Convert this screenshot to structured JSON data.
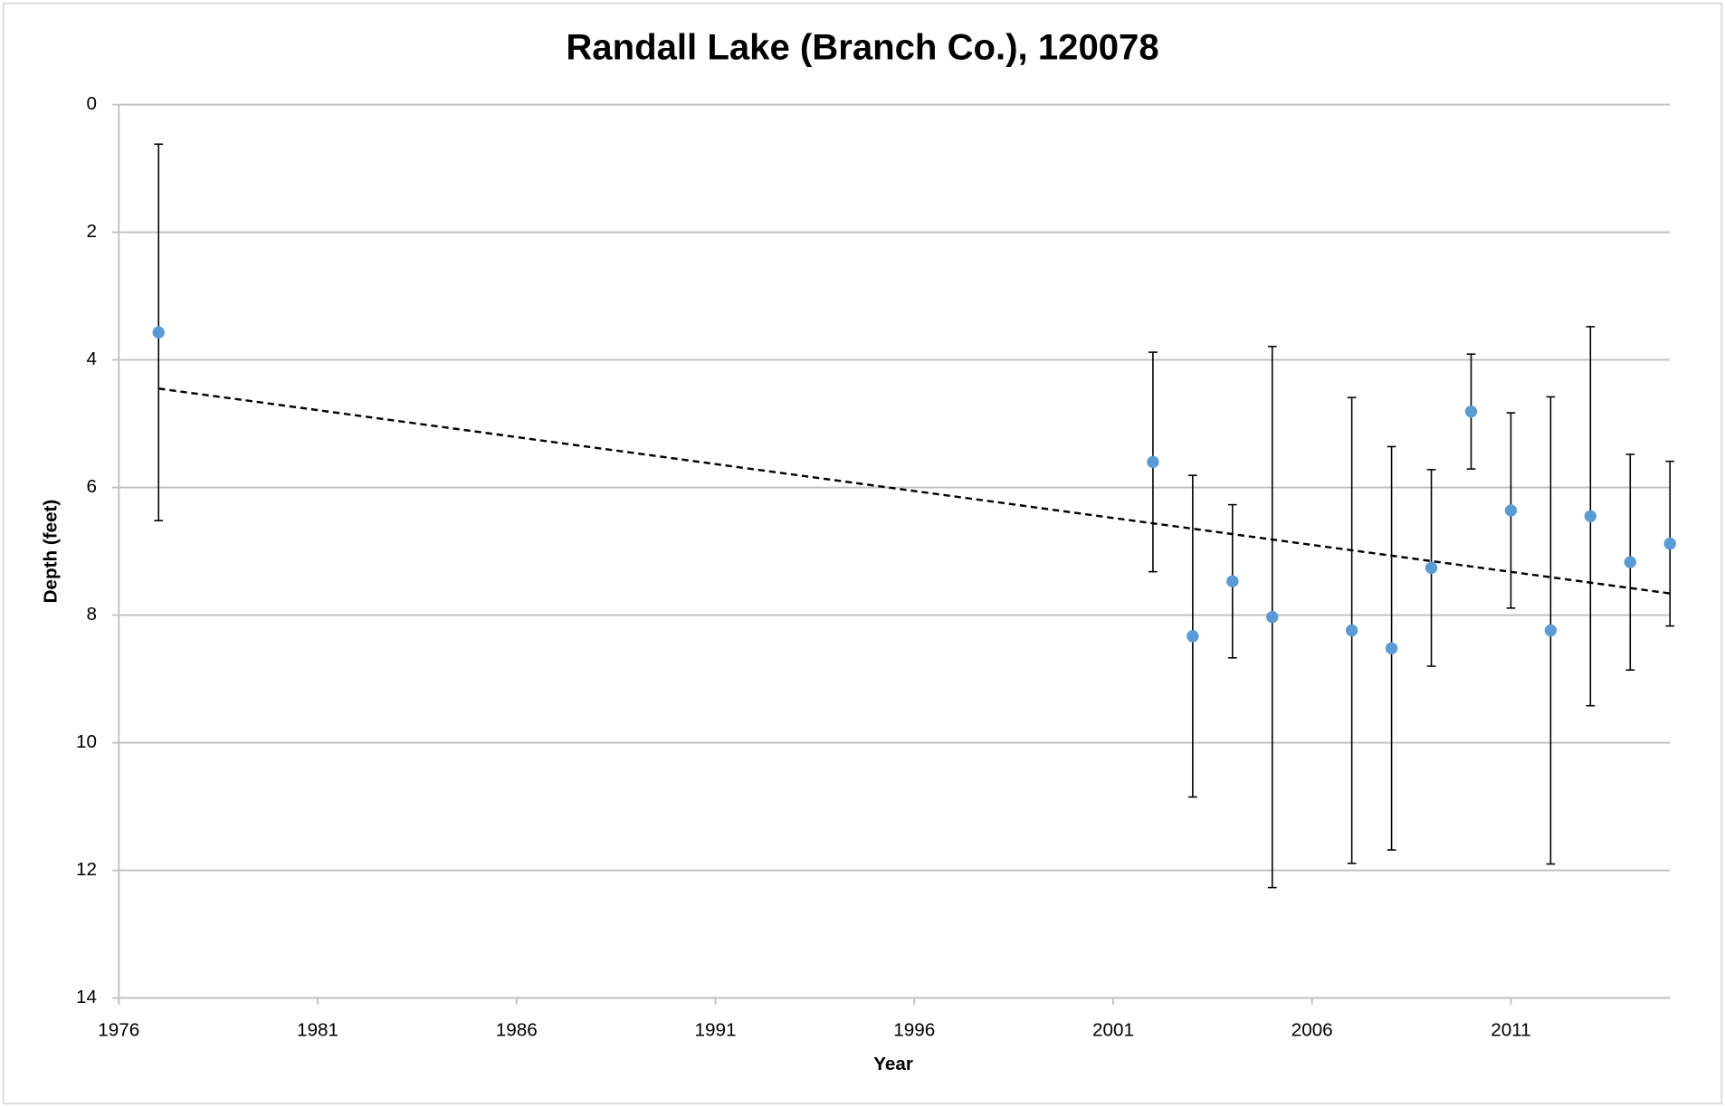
{
  "chart_data": {
    "type": "errorbar-scatter",
    "title": "Randall Lake (Branch Co.), 120078",
    "x_label": "Year",
    "y_label": "Depth (feet)",
    "x": [
      1977,
      2002,
      2003,
      2004,
      2005,
      2007,
      2008,
      2009,
      2010,
      2011,
      2012,
      2013,
      2014,
      2015
    ],
    "values": [
      3.57,
      5.6,
      8.33,
      7.47,
      8.03,
      8.24,
      8.52,
      7.26,
      4.81,
      6.36,
      8.24,
      6.45,
      7.17,
      6.88
    ],
    "errors": [
      2.95,
      1.72,
      2.52,
      1.2,
      4.24,
      3.65,
      3.16,
      1.54,
      0.9,
      1.53,
      3.66,
      2.97,
      1.69,
      1.29
    ],
    "color": "#5b9bd5",
    "trendline": {
      "x": [
        1977,
        2015
      ],
      "values": [
        4.45,
        7.66
      ]
    },
    "xlim": [
      1976,
      2015
    ],
    "xticks": [
      1976,
      1981,
      1986,
      1991,
      1996,
      2001,
      2006,
      2011
    ],
    "ylim": [
      0,
      14
    ],
    "yticks": [
      0,
      2,
      4,
      6,
      8,
      10,
      12,
      14
    ],
    "y_reversed": true,
    "grid": true
  }
}
